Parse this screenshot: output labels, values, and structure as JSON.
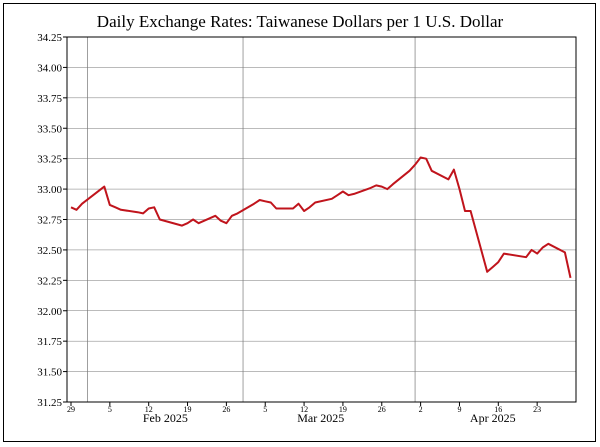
{
  "chart_data": {
    "type": "line",
    "title": "Daily Exchange Rates: Taiwanese Dollars per 1 U.S. Dollar",
    "xlabel": "",
    "ylabel": "",
    "ylim": [
      31.25,
      34.25
    ],
    "yticks": [
      31.25,
      31.5,
      31.75,
      32.0,
      32.25,
      32.5,
      32.75,
      33.0,
      33.25,
      33.5,
      33.75,
      34.0,
      34.25
    ],
    "ytick_labels": [
      "31.25",
      "31.50",
      "31.75",
      "32.00",
      "32.25",
      "32.50",
      "32.75",
      "33.00",
      "33.25",
      "33.50",
      "33.75",
      "34.00",
      "34.25"
    ],
    "xlim": [
      "2025-01-29",
      "2025-04-30"
    ],
    "day_ticks": [
      {
        "date": "2025-01-29",
        "label": "29"
      },
      {
        "date": "2025-02-05",
        "label": "5"
      },
      {
        "date": "2025-02-12",
        "label": "12"
      },
      {
        "date": "2025-02-19",
        "label": "19"
      },
      {
        "date": "2025-02-26",
        "label": "26"
      },
      {
        "date": "2025-03-05",
        "label": "5"
      },
      {
        "date": "2025-03-12",
        "label": "12"
      },
      {
        "date": "2025-03-19",
        "label": "19"
      },
      {
        "date": "2025-03-26",
        "label": "26"
      },
      {
        "date": "2025-04-02",
        "label": "2"
      },
      {
        "date": "2025-04-09",
        "label": "9"
      },
      {
        "date": "2025-04-16",
        "label": "16"
      },
      {
        "date": "2025-04-23",
        "label": "23"
      }
    ],
    "month_labels": [
      {
        "date": "2025-02-15",
        "label": "Feb 2025"
      },
      {
        "date": "2025-03-15",
        "label": "Mar 2025"
      },
      {
        "date": "2025-04-15",
        "label": "Apr 2025"
      }
    ],
    "month_gridlines": [
      "2025-02-01",
      "2025-03-01",
      "2025-04-01"
    ],
    "grid": true,
    "colors": {
      "line": "#c0141c",
      "axis": "#000000",
      "grid": "#777777"
    },
    "series": [
      {
        "x": [
          "2025-01-29",
          "2025-01-30",
          "2025-01-31",
          "2025-02-04",
          "2025-02-05",
          "2025-02-06",
          "2025-02-07",
          "2025-02-10",
          "2025-02-11",
          "2025-02-12",
          "2025-02-13",
          "2025-02-14",
          "2025-02-18",
          "2025-02-19",
          "2025-02-20",
          "2025-02-21",
          "2025-02-24",
          "2025-02-25",
          "2025-02-26",
          "2025-02-27",
          "2025-02-28",
          "2025-03-03",
          "2025-03-04",
          "2025-03-05",
          "2025-03-06",
          "2025-03-07",
          "2025-03-10",
          "2025-03-11",
          "2025-03-12",
          "2025-03-13",
          "2025-03-14",
          "2025-03-17",
          "2025-03-18",
          "2025-03-19",
          "2025-03-20",
          "2025-03-21",
          "2025-03-24",
          "2025-03-25",
          "2025-03-26",
          "2025-03-27",
          "2025-03-28",
          "2025-03-31",
          "2025-04-01",
          "2025-04-02",
          "2025-04-03",
          "2025-04-04",
          "2025-04-07",
          "2025-04-08",
          "2025-04-09",
          "2025-04-10",
          "2025-04-11",
          "2025-04-14",
          "2025-04-15",
          "2025-04-16",
          "2025-04-17",
          "2025-04-21",
          "2025-04-22",
          "2025-04-23",
          "2025-04-24",
          "2025-04-25",
          "2025-04-28",
          "2025-04-29"
        ],
        "values": [
          32.85,
          32.83,
          32.88,
          33.02,
          32.87,
          32.85,
          32.83,
          32.81,
          32.8,
          32.84,
          32.85,
          32.75,
          32.7,
          32.72,
          32.75,
          32.72,
          32.78,
          32.74,
          32.72,
          32.78,
          32.8,
          32.88,
          32.91,
          32.9,
          32.89,
          32.84,
          32.84,
          32.88,
          32.82,
          32.85,
          32.89,
          32.92,
          32.95,
          32.98,
          32.95,
          32.96,
          33.01,
          33.03,
          33.02,
          33.0,
          33.04,
          33.15,
          33.2,
          33.26,
          33.25,
          33.15,
          33.08,
          33.16,
          33.0,
          32.82,
          32.82,
          32.32,
          32.36,
          32.4,
          32.47,
          32.44,
          32.5,
          32.47,
          32.52,
          32.55,
          32.48,
          32.27
        ]
      }
    ]
  }
}
